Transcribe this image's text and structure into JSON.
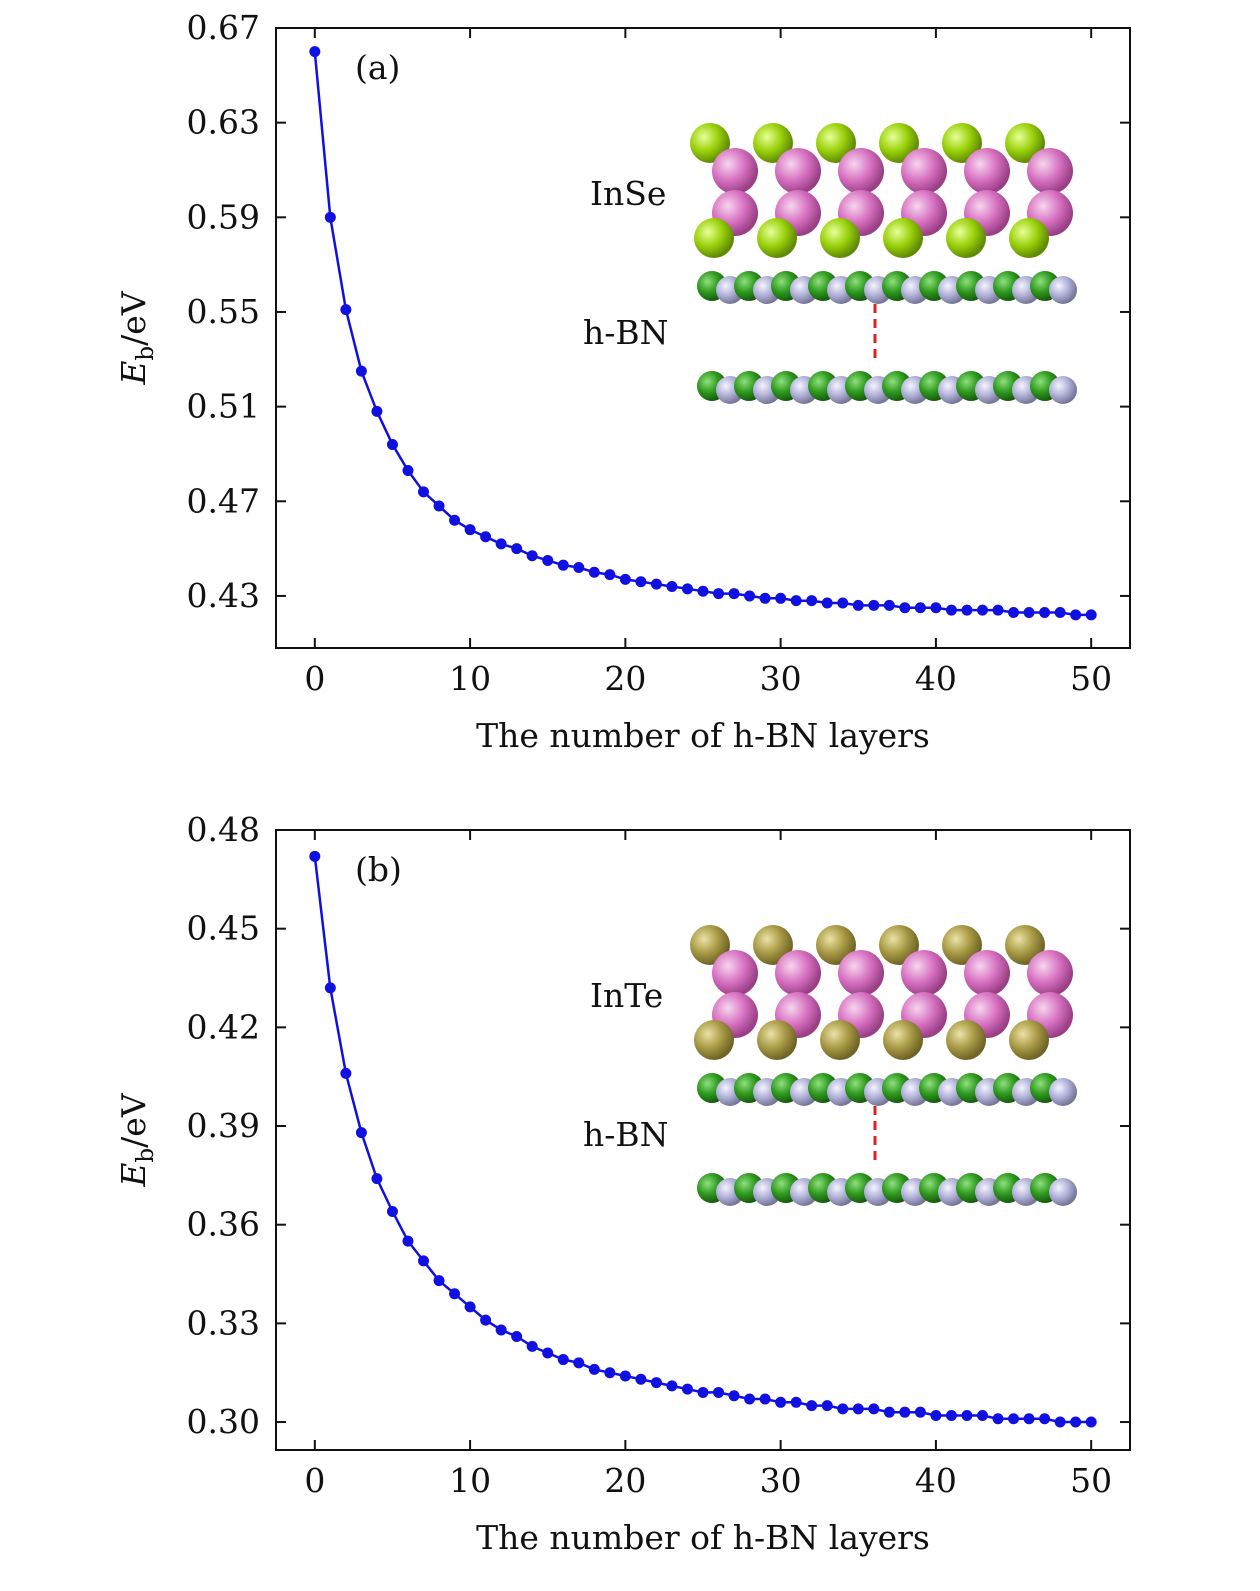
{
  "chart_data": [
    {
      "type": "line",
      "panel_label": "(a)",
      "xlabel": "The number of h-BN layers",
      "ylabel_main": "E",
      "ylabel_sub": "b",
      "ylabel_unit": "/eV",
      "xlim": [
        -2.5,
        52.5
      ],
      "ylim": [
        0.408,
        0.67
      ],
      "xticks": [
        0,
        10,
        20,
        30,
        40,
        50
      ],
      "yticks": [
        0.43,
        0.47,
        0.51,
        0.55,
        0.59,
        0.63,
        0.67
      ],
      "ytick_labels": [
        "0.43",
        "0.47",
        "0.51",
        "0.55",
        "0.59",
        "0.63",
        "0.67"
      ],
      "xtick_labels": [
        "0",
        "10",
        "20",
        "30",
        "40",
        "50"
      ],
      "series_color": "#1010e0",
      "x": [
        0,
        1,
        2,
        3,
        4,
        5,
        6,
        7,
        8,
        9,
        10,
        11,
        12,
        13,
        14,
        15,
        16,
        17,
        18,
        19,
        20,
        21,
        22,
        23,
        24,
        25,
        26,
        27,
        28,
        29,
        30,
        31,
        32,
        33,
        34,
        35,
        36,
        37,
        38,
        39,
        40,
        41,
        42,
        43,
        44,
        45,
        46,
        47,
        48,
        49,
        50
      ],
      "y": [
        0.66,
        0.59,
        0.551,
        0.525,
        0.508,
        0.494,
        0.483,
        0.474,
        0.468,
        0.462,
        0.458,
        0.455,
        0.452,
        0.45,
        0.447,
        0.445,
        0.443,
        0.442,
        0.44,
        0.439,
        0.437,
        0.436,
        0.435,
        0.434,
        0.433,
        0.432,
        0.431,
        0.431,
        0.43,
        0.429,
        0.429,
        0.428,
        0.428,
        0.427,
        0.427,
        0.426,
        0.426,
        0.426,
        0.425,
        0.425,
        0.425,
        0.424,
        0.424,
        0.424,
        0.424,
        0.423,
        0.423,
        0.423,
        0.423,
        0.422,
        0.422
      ],
      "inset": {
        "top_material": "InSe",
        "bottom_material": "h-BN",
        "chalcogen_color": "#9ad10a"
      }
    },
    {
      "type": "line",
      "panel_label": "(b)",
      "xlabel": "The number of h-BN layers",
      "ylabel_main": "E",
      "ylabel_sub": "b",
      "ylabel_unit": "/eV",
      "xlim": [
        -2.5,
        52.5
      ],
      "ylim": [
        0.2915,
        0.48
      ],
      "xticks": [
        0,
        10,
        20,
        30,
        40,
        50
      ],
      "yticks": [
        0.3,
        0.33,
        0.36,
        0.39,
        0.42,
        0.45,
        0.48
      ],
      "ytick_labels": [
        "0.30",
        "0.33",
        "0.36",
        "0.39",
        "0.42",
        "0.45",
        "0.48"
      ],
      "xtick_labels": [
        "0",
        "10",
        "20",
        "30",
        "40",
        "50"
      ],
      "series_color": "#1010e0",
      "x": [
        0,
        1,
        2,
        3,
        4,
        5,
        6,
        7,
        8,
        9,
        10,
        11,
        12,
        13,
        14,
        15,
        16,
        17,
        18,
        19,
        20,
        21,
        22,
        23,
        24,
        25,
        26,
        27,
        28,
        29,
        30,
        31,
        32,
        33,
        34,
        35,
        36,
        37,
        38,
        39,
        40,
        41,
        42,
        43,
        44,
        45,
        46,
        47,
        48,
        49,
        50
      ],
      "y": [
        0.472,
        0.432,
        0.406,
        0.388,
        0.374,
        0.364,
        0.355,
        0.349,
        0.343,
        0.339,
        0.335,
        0.331,
        0.328,
        0.326,
        0.323,
        0.321,
        0.319,
        0.318,
        0.316,
        0.315,
        0.314,
        0.313,
        0.312,
        0.311,
        0.31,
        0.309,
        0.309,
        0.308,
        0.307,
        0.307,
        0.306,
        0.306,
        0.305,
        0.305,
        0.304,
        0.304,
        0.304,
        0.303,
        0.303,
        0.303,
        0.302,
        0.302,
        0.302,
        0.302,
        0.301,
        0.301,
        0.301,
        0.301,
        0.3,
        0.3,
        0.3
      ],
      "inset": {
        "top_material": "InTe",
        "bottom_material": "h-BN",
        "chalcogen_color": "#a89a45"
      }
    }
  ],
  "atom_colors": {
    "indium": "#d872c2",
    "boron": "#2f9a1f",
    "nitrogen": "#b0b0d8",
    "spacing_line": "#e02020"
  }
}
